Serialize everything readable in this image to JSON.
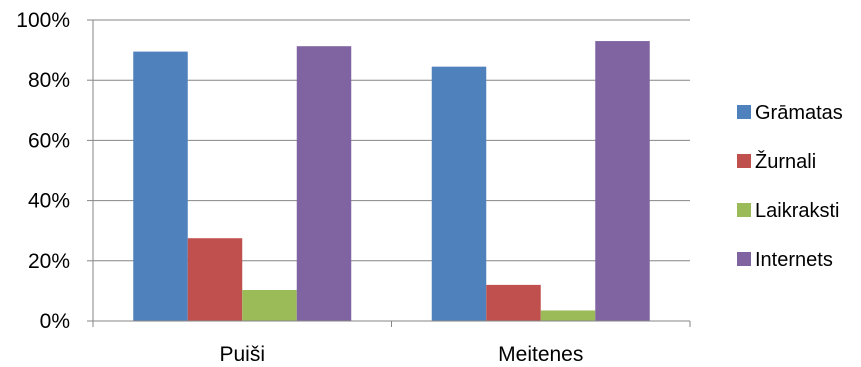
{
  "chart_data": {
    "type": "bar",
    "categories": [
      "Puiši",
      "Meitenes"
    ],
    "series": [
      {
        "name": "Grāmatas",
        "values": [
          89.5,
          84.5
        ],
        "color": "#4f81bd"
      },
      {
        "name": "Žurnali",
        "values": [
          27.5,
          12.0
        ],
        "color": "#c0504d"
      },
      {
        "name": "Laikraksti",
        "values": [
          10.3,
          3.5
        ],
        "color": "#9bbb59"
      },
      {
        "name": "Internets",
        "values": [
          91.3,
          93.0
        ],
        "color": "#8064a2"
      }
    ],
    "title": "",
    "xlabel": "",
    "ylabel": "",
    "ylim": [
      0,
      100
    ],
    "yticks": [
      "0%",
      "20%",
      "40%",
      "60%",
      "80%",
      "100%"
    ],
    "grid": true,
    "legend_position": "right"
  }
}
